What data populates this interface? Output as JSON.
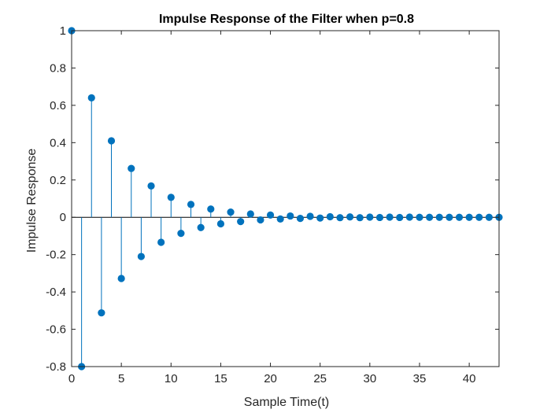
{
  "chart_data": {
    "type": "stem",
    "title": "Impulse Response of the Filter when p=0.8",
    "xlabel": "Sample Time(t)",
    "ylabel": "Impulse Response",
    "xlim": [
      0,
      43
    ],
    "ylim": [
      -0.8,
      1
    ],
    "xticks": [
      0,
      5,
      10,
      15,
      20,
      25,
      30,
      35,
      40
    ],
    "yticks": [
      -0.8,
      -0.6,
      -0.4,
      -0.2,
      0,
      0.2,
      0.4,
      0.6,
      0.8,
      1
    ],
    "xtick_labels": [
      "0",
      "5",
      "10",
      "15",
      "20",
      "25",
      "30",
      "35",
      "40"
    ],
    "ytick_labels": [
      "-0.8",
      "-0.6",
      "-0.4",
      "-0.2",
      "0",
      "0.2",
      "0.4",
      "0.6",
      "0.8",
      "1"
    ],
    "grid": false,
    "color": "#0072BD",
    "series": [
      {
        "x": [
          0,
          1,
          2,
          3,
          4,
          5,
          6,
          7,
          8,
          9,
          10,
          11,
          12,
          13,
          14,
          15,
          16,
          17,
          18,
          19,
          20,
          21,
          22,
          23,
          24,
          25,
          26,
          27,
          28,
          29,
          30,
          31,
          32,
          33,
          34,
          35,
          36,
          37,
          38,
          39,
          40,
          41,
          42,
          43
        ],
        "values": [
          1,
          -0.8,
          0.64,
          -0.512,
          0.41,
          -0.328,
          0.262,
          -0.21,
          0.168,
          -0.134,
          0.107,
          -0.086,
          0.069,
          -0.055,
          0.044,
          -0.035,
          0.028,
          -0.023,
          0.018,
          -0.014,
          0.012,
          -0.009,
          0.007,
          -0.006,
          0.005,
          -0.004,
          0.003,
          -0.002,
          0.002,
          -0.002,
          0.001,
          -0.001,
          0.001,
          -0.001,
          0.001,
          0,
          0,
          0,
          0,
          0,
          0,
          0,
          0,
          0
        ]
      }
    ]
  }
}
